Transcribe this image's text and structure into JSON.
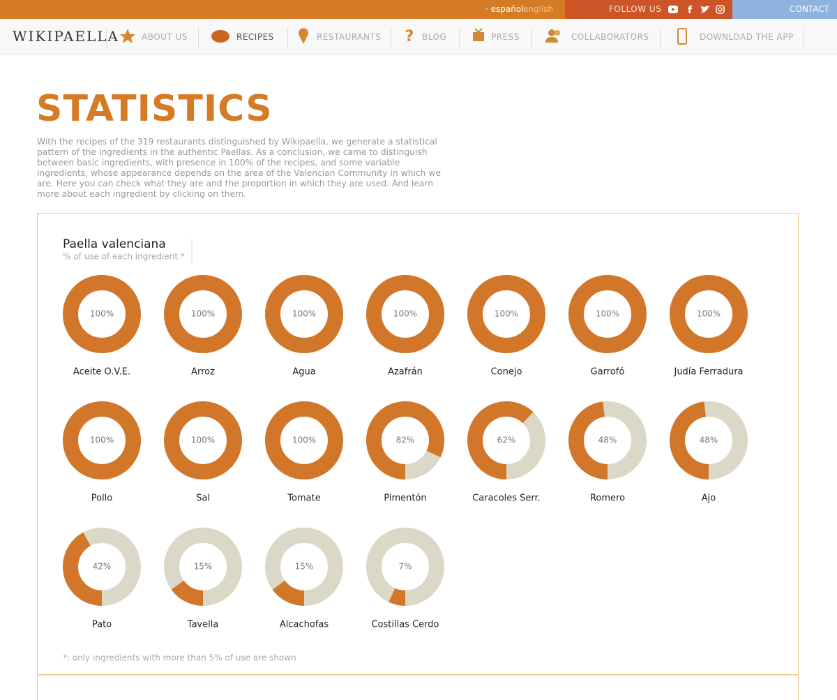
{
  "topbar": {
    "lang_active": "· español",
    "lang_other": "english",
    "follow": "FOLLOW US",
    "contact": "CONTACT"
  },
  "nav": {
    "logo": "WIKIPAELLA",
    "items": [
      "ABOUT US",
      "RECIPES",
      "RESTAURANTS",
      "BLOG",
      "PRESS",
      "COLLABORATORS",
      "DOWNLOAD THE APP"
    ]
  },
  "header": {
    "title": "STATISTICS",
    "text": "With the recipes of the 319 restaurants distinguished by Wikipaella, we generate a statistical pattern of the ingredients in the authentic Paellas. As a conclusion, we came to distinguish between basic ingredients, with presence in 100% of the recipes, and some variable ingredients, whose appearance depends on the area of the Valencian Community in which we are. Here you can check what they are and the proportion in which they are used. And learn more about each ingredient by clicking on them."
  },
  "chart_data": {
    "type": "donut",
    "title": "Paella valenciana",
    "subtitle": "% of use of each ingredient *",
    "categories": [
      "Aceite O.V.E.",
      "Arroz",
      "Agua",
      "Azafrán",
      "Conejo",
      "Garrofó",
      "Judía Ferradura",
      "Pollo",
      "Sal",
      "Tomate",
      "Pimentón",
      "Caracoles Serr.",
      "Romero",
      "Ajo",
      "Pato",
      "Tavella",
      "Alcachofas",
      "Costillas Cerdo"
    ],
    "values": [
      100,
      100,
      100,
      100,
      100,
      100,
      100,
      100,
      100,
      100,
      82,
      62,
      48,
      48,
      42,
      15,
      15,
      7
    ],
    "value_labels": [
      "100%",
      "100%",
      "100%",
      "100%",
      "100%",
      "100%",
      "100%",
      "100%",
      "100%",
      "100%",
      "82%",
      "62%",
      "48%",
      "48%",
      "42%",
      "15%",
      "15%",
      "7%"
    ],
    "color": "#d2772a",
    "track_color": "#dcd8c7",
    "footnote": "*: only ingredients with more than 5% of use are shown"
  }
}
